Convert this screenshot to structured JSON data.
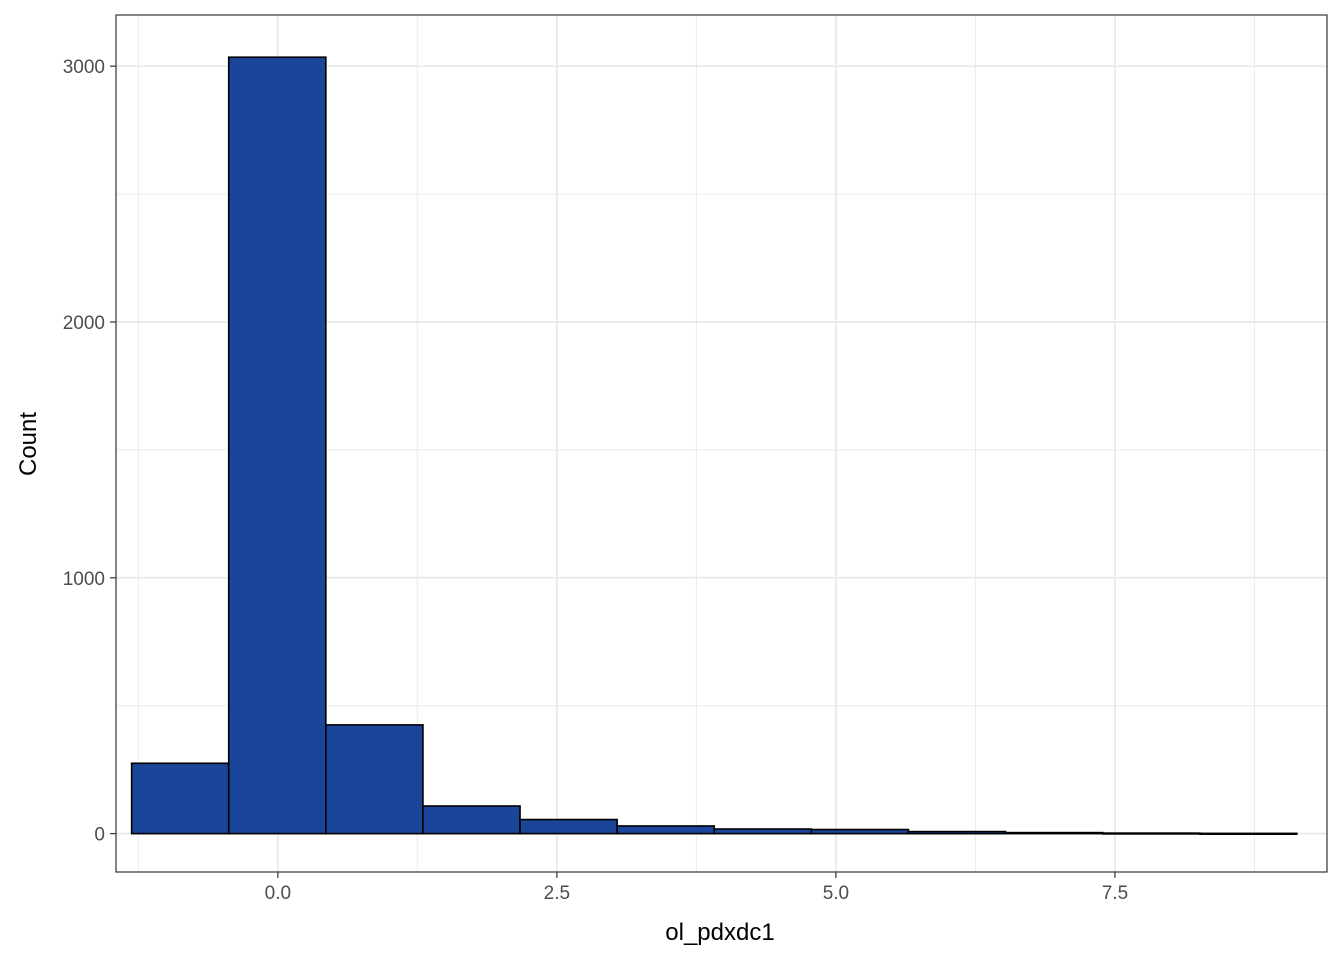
{
  "chart_data": {
    "type": "bar",
    "subtype": "histogram",
    "xlabel": "ol_pdxdc1",
    "ylabel": "Count",
    "xlim": [
      -1.45,
      9.4
    ],
    "ylim": [
      -150,
      3200
    ],
    "x_ticks": [
      0.0,
      2.5,
      5.0,
      7.5
    ],
    "x_tick_labels": [
      "0.0",
      "2.5",
      "5.0",
      "7.5"
    ],
    "y_ticks": [
      0,
      1000,
      2000,
      3000
    ],
    "y_tick_labels": [
      "0",
      "1000",
      "2000",
      "3000"
    ],
    "grid": true,
    "fill_color": "#1a4599",
    "edge_color": "#000000",
    "bins": [
      {
        "x0": -1.31,
        "x1": -0.44,
        "count": 275
      },
      {
        "x0": -0.44,
        "x1": 0.43,
        "count": 3035
      },
      {
        "x0": 0.43,
        "x1": 1.3,
        "count": 425
      },
      {
        "x0": 1.3,
        "x1": 2.17,
        "count": 108
      },
      {
        "x0": 2.17,
        "x1": 3.04,
        "count": 55
      },
      {
        "x0": 3.04,
        "x1": 3.91,
        "count": 30
      },
      {
        "x0": 3.91,
        "x1": 4.78,
        "count": 18
      },
      {
        "x0": 4.78,
        "x1": 5.65,
        "count": 16
      },
      {
        "x0": 5.65,
        "x1": 6.52,
        "count": 8
      },
      {
        "x0": 6.52,
        "x1": 7.39,
        "count": 4
      },
      {
        "x0": 7.39,
        "x1": 8.26,
        "count": 2
      },
      {
        "x0": 8.26,
        "x1": 9.13,
        "count": 1
      }
    ]
  }
}
